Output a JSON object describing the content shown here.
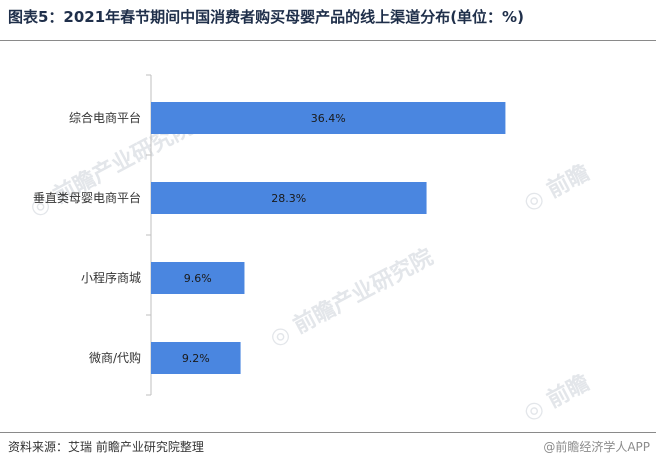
{
  "title": "图表5：2021年春节期间中国消费者购买母婴产品的线上渠道分布(单位：%)",
  "source": {
    "label": "资料来源：",
    "text": "艾瑞 前瞻产业研究院整理"
  },
  "watermark": {
    "text": "前瞻产业研究院",
    "credit": "@前瞻经济学人APP"
  },
  "colors": {
    "bar": "#4a86e0",
    "axis": "#bfbfbf",
    "title": "#1f2f4a"
  },
  "chart_data": {
    "type": "bar",
    "orientation": "horizontal",
    "categories": [
      "综合电商平台",
      "垂直类母婴电商平台",
      "小程序商城",
      "微商/代购"
    ],
    "values": [
      36.4,
      28.3,
      9.6,
      9.2
    ],
    "value_labels": [
      "36.4%",
      "28.3%",
      "9.6%",
      "9.2%"
    ],
    "xlim": [
      0,
      40
    ],
    "grid": false,
    "legend": "none"
  }
}
